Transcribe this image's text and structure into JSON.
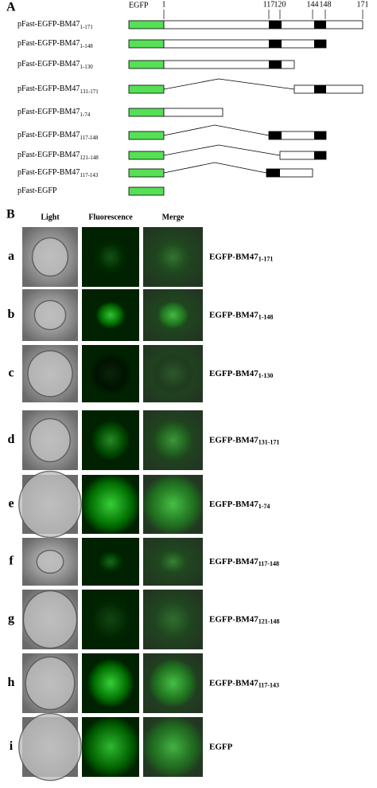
{
  "panel_a": {
    "label": "A",
    "egfp_label": "EGFP",
    "residues": [
      "1",
      "117",
      "120",
      "144",
      "148",
      "171"
    ],
    "constructs": [
      {
        "name": "pFast-EGFP-BM47",
        "range": "1-171"
      },
      {
        "name": "pFast-EGFP-BM47",
        "range": "1-148"
      },
      {
        "name": "pFast-EGFP-BM47",
        "range": "1-130"
      },
      {
        "name": "pFast-EGFP-BM47",
        "range": "131-171"
      },
      {
        "name": "pFast-EGFP-BM47",
        "range": "1-74"
      },
      {
        "name": "pFast-EGFP-BM47",
        "range": "117-148"
      },
      {
        "name": "pFast-EGFP-BM47",
        "range": "121-148"
      },
      {
        "name": "pFast-EGFP-BM47",
        "range": "117-143"
      },
      {
        "name": "pFast-EGFP"
      }
    ]
  },
  "panel_b": {
    "label": "B",
    "columns": [
      "Light",
      "Fluorescence",
      "Merge"
    ],
    "rows": [
      {
        "letter": "a",
        "name": "EGFP-BM47",
        "range": "1-171"
      },
      {
        "letter": "b",
        "name": "EGFP-BM47",
        "range": "1-148"
      },
      {
        "letter": "c",
        "name": "EGFP-BM47",
        "range": "1-130"
      },
      {
        "letter": "d",
        "name": "EGFP-BM47",
        "range": "131-171"
      },
      {
        "letter": "e",
        "name": "EGFP-BM47",
        "range": "1-74"
      },
      {
        "letter": "f",
        "name": "EGFP-BM47",
        "range": "117-148"
      },
      {
        "letter": "g",
        "name": "EGFP-BM47",
        "range": "121-148"
      },
      {
        "letter": "h",
        "name": "EGFP-BM47",
        "range": "117-143"
      },
      {
        "letter": "i",
        "name": "EGFP"
      }
    ]
  }
}
